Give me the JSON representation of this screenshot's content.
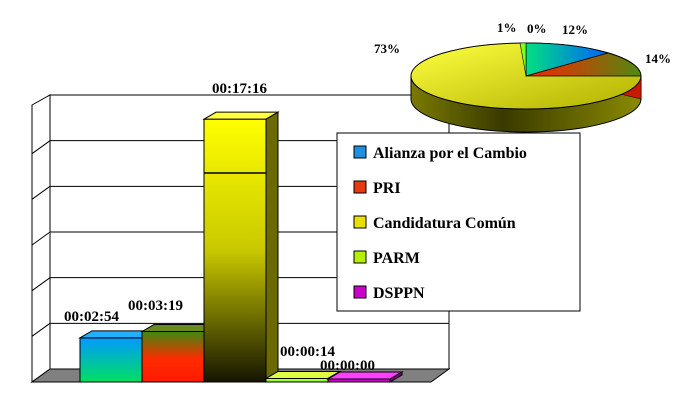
{
  "chart_data": [
    {
      "type": "bar",
      "categories": [
        "Alianza por el Cambio",
        "PRI",
        "Candidatura Común",
        "PARM",
        "DSPPN"
      ],
      "values": [
        "00:02:54",
        "00:03:19",
        "00:17:16",
        "00:00:14",
        "00:00:00"
      ],
      "values_seconds": [
        174,
        199,
        1036,
        14,
        0
      ],
      "ylim_seconds": [
        0,
        1080
      ],
      "grid": true,
      "three_d": true
    },
    {
      "type": "pie",
      "categories": [
        "Alianza por el Cambio",
        "PRI",
        "Candidatura Común",
        "PARM",
        "DSPPN"
      ],
      "values": [
        12,
        14,
        73,
        1,
        0
      ],
      "labels": [
        "12%",
        "14%",
        "73%",
        "1%",
        "0%"
      ],
      "three_d": true
    }
  ],
  "legend": {
    "placement": "right",
    "items": [
      {
        "label": "Alianza por el Cambio",
        "color": "#1f8fe0"
      },
      {
        "label": "PRI",
        "color": "#e63a10"
      },
      {
        "label": "Candidatura Común",
        "color": "#e8e000"
      },
      {
        "label": "PARM",
        "color": "#b4f000"
      },
      {
        "label": "DSPPN",
        "color": "#cc00cc"
      }
    ]
  },
  "colors": {
    "alianza_top": "#0099ff",
    "alianza_bottom": "#00e060",
    "pri_top": "#4a8a10",
    "pri_bottom": "#ff2000",
    "comun_top": "#ffff00",
    "comun_bottom": "#1a1a00",
    "parm_top": "#ffff00",
    "parm_bottom": "#40ff40",
    "dsppn_top": "#ff00ff",
    "dsppn_bottom": "#990099",
    "floor": "#808080"
  }
}
